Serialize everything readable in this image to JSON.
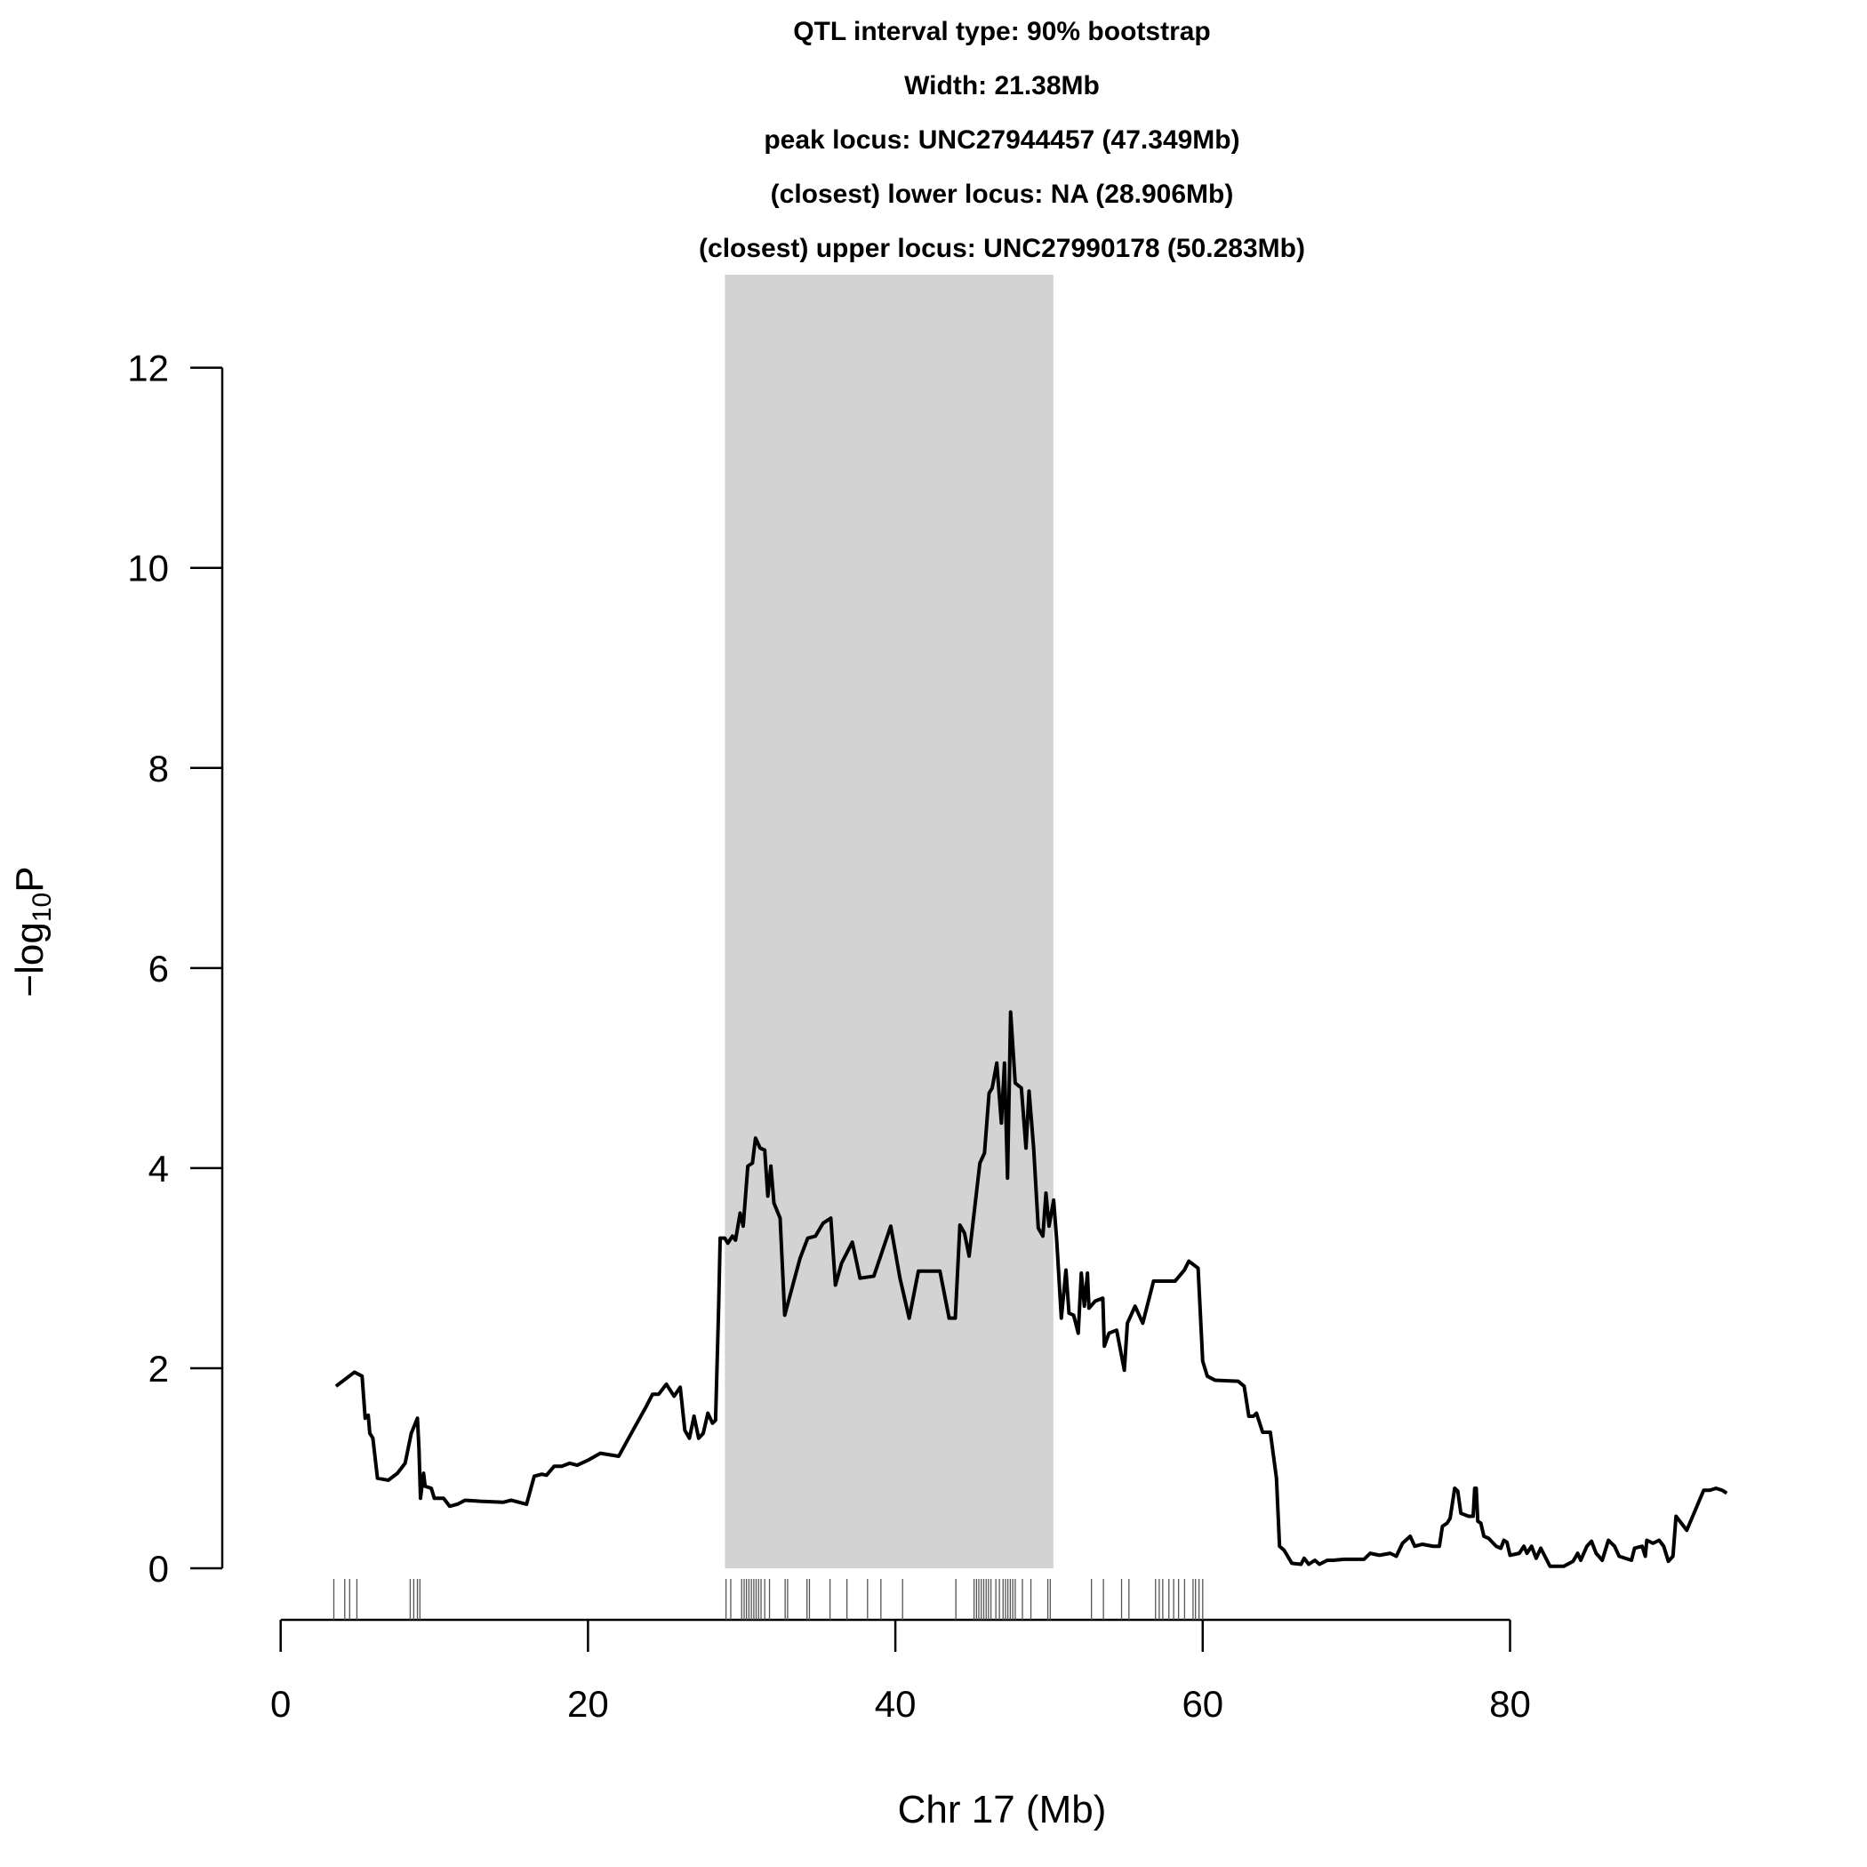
{
  "chart_data": {
    "type": "line",
    "title": [
      "QTL interval type: 90% bootstrap",
      "Width: 21.38Mb",
      "peak locus: UNC27944457 (47.349Mb)",
      "(closest) lower locus: NA (28.906Mb)",
      "(closest) upper locus: UNC27990178 (50.283Mb)"
    ],
    "x_label": "Chr 17 (Mb)",
    "y_label": {
      "main": "−log",
      "sub": "10",
      "suffix": "P"
    },
    "color": "#000000",
    "interval_color": "#d3d3d3",
    "interval": [
      28.906,
      50.283
    ],
    "xlim": [
      -3.8,
      97.5
    ],
    "ylim": [
      0,
      12.93
    ],
    "xticks": [
      0,
      20,
      40,
      60,
      80
    ],
    "yticks": [
      0,
      2,
      4,
      6,
      8,
      10,
      12
    ],
    "x": [
      3.6,
      4.8,
      5.3,
      5.5,
      5.7,
      5.8,
      6.0,
      6.3,
      7.0,
      7.6,
      8.1,
      8.5,
      8.9,
      9.0,
      9.1,
      9.3,
      9.4,
      9.8,
      10.0,
      10.6,
      11.0,
      11.5,
      12.0,
      13.0,
      14.5,
      15.0,
      16.0,
      16.5,
      17.0,
      17.3,
      17.8,
      18.3,
      18.8,
      19.3,
      20.0,
      20.8,
      22.0,
      23.0,
      23.8,
      24.2,
      24.6,
      25.1,
      25.6,
      26.0,
      26.3,
      26.6,
      26.9,
      27.2,
      27.5,
      27.8,
      28.1,
      28.3,
      28.5,
      28.6,
      28.9,
      29.1,
      29.4,
      29.6,
      29.9,
      30.1,
      30.4,
      30.7,
      30.9,
      31.2,
      31.5,
      31.7,
      31.9,
      32.1,
      32.5,
      32.8,
      33.8,
      34.3,
      34.8,
      35.3,
      35.6,
      35.8,
      36.1,
      36.5,
      37.2,
      37.7,
      38.6,
      39.7,
      40.3,
      40.9,
      41.5,
      42.9,
      43.5,
      43.9,
      44.2,
      44.5,
      44.8,
      45.5,
      45.8,
      46.1,
      46.3,
      46.6,
      46.9,
      47.1,
      47.3,
      47.5,
      47.8,
      48.2,
      48.5,
      48.7,
      49.0,
      49.3,
      49.6,
      49.8,
      50.0,
      50.3,
      50.5,
      50.8,
      51.1,
      51.3,
      51.6,
      51.9,
      52.1,
      52.3,
      52.5,
      52.6,
      53.0,
      53.5,
      53.6,
      53.9,
      54.4,
      54.9,
      55.1,
      55.6,
      56.1,
      56.8,
      58.2,
      58.8,
      59.1,
      59.7,
      60.0,
      60.3,
      60.8,
      62.3,
      62.7,
      63.0,
      63.3,
      63.5,
      63.9,
      64.4,
      64.8,
      65.0,
      65.3,
      65.8,
      66.4,
      66.6,
      66.9,
      67.3,
      67.6,
      68.1,
      68.5,
      69.2,
      70.5,
      70.9,
      71.5,
      72.2,
      72.6,
      73.0,
      73.5,
      73.8,
      74.3,
      75.0,
      75.4,
      75.6,
      75.9,
      76.1,
      76.4,
      76.6,
      76.8,
      77.3,
      77.6,
      77.7,
      77.8,
      77.9,
      78.1,
      78.3,
      78.6,
      79.1,
      79.4,
      79.6,
      79.8,
      80.0,
      80.6,
      80.9,
      81.1,
      81.4,
      81.7,
      82.0,
      82.6,
      83.5,
      84.1,
      84.4,
      84.6,
      85.0,
      85.3,
      85.6,
      86.0,
      86.4,
      86.8,
      87.1,
      87.9,
      88.1,
      88.6,
      88.8,
      88.9,
      89.3,
      89.7,
      90.0,
      90.3,
      90.6,
      90.8,
      91.5,
      92.6,
      93.0,
      93.4,
      93.8,
      94.1
    ],
    "values": [
      1.82,
      1.96,
      1.92,
      1.5,
      1.53,
      1.35,
      1.3,
      0.9,
      0.88,
      0.95,
      1.05,
      1.35,
      1.5,
      1.2,
      0.7,
      0.95,
      0.82,
      0.8,
      0.7,
      0.7,
      0.62,
      0.64,
      0.68,
      0.67,
      0.66,
      0.68,
      0.64,
      0.92,
      0.94,
      0.93,
      1.02,
      1.02,
      1.05,
      1.03,
      1.08,
      1.15,
      1.12,
      1.4,
      1.62,
      1.74,
      1.74,
      1.84,
      1.72,
      1.81,
      1.38,
      1.3,
      1.52,
      1.3,
      1.35,
      1.55,
      1.45,
      1.48,
      2.6,
      3.3,
      3.3,
      3.25,
      3.32,
      3.28,
      3.55,
      3.42,
      4.02,
      4.05,
      4.3,
      4.2,
      4.18,
      3.72,
      4.02,
      3.65,
      3.5,
      2.53,
      3.1,
      3.3,
      3.32,
      3.45,
      3.48,
      3.5,
      2.83,
      3.05,
      3.26,
      2.9,
      2.92,
      3.42,
      2.9,
      2.5,
      2.97,
      2.97,
      2.5,
      2.5,
      3.43,
      3.35,
      3.12,
      4.05,
      4.15,
      4.75,
      4.8,
      5.05,
      4.45,
      5.05,
      3.9,
      5.56,
      4.85,
      4.8,
      4.2,
      4.77,
      4.2,
      3.4,
      3.32,
      3.75,
      3.42,
      3.68,
      3.28,
      2.5,
      2.98,
      2.55,
      2.53,
      2.35,
      2.95,
      2.62,
      2.95,
      2.6,
      2.67,
      2.7,
      2.22,
      2.35,
      2.38,
      1.98,
      2.45,
      2.62,
      2.45,
      2.87,
      2.87,
      2.98,
      3.07,
      3.0,
      2.07,
      1.92,
      1.88,
      1.87,
      1.82,
      1.52,
      1.52,
      1.55,
      1.36,
      1.36,
      0.9,
      0.22,
      0.18,
      0.05,
      0.04,
      0.1,
      0.04,
      0.08,
      0.04,
      0.08,
      0.08,
      0.09,
      0.09,
      0.15,
      0.13,
      0.15,
      0.12,
      0.25,
      0.32,
      0.22,
      0.24,
      0.22,
      0.22,
      0.42,
      0.45,
      0.5,
      0.8,
      0.77,
      0.55,
      0.52,
      0.52,
      0.8,
      0.8,
      0.47,
      0.45,
      0.32,
      0.3,
      0.22,
      0.2,
      0.28,
      0.26,
      0.13,
      0.15,
      0.22,
      0.15,
      0.22,
      0.1,
      0.2,
      0.02,
      0.02,
      0.07,
      0.15,
      0.08,
      0.22,
      0.27,
      0.15,
      0.08,
      0.28,
      0.22,
      0.12,
      0.08,
      0.2,
      0.22,
      0.12,
      0.28,
      0.25,
      0.28,
      0.22,
      0.07,
      0.12,
      0.52,
      0.38,
      0.78,
      0.78,
      0.8,
      0.78,
      0.75
    ],
    "markers": [
      3.46,
      4.17,
      4.49,
      4.96,
      8.43,
      8.66,
      8.9,
      9.06,
      28.98,
      29.29,
      30.0,
      30.16,
      30.31,
      30.47,
      30.63,
      30.79,
      30.94,
      31.1,
      31.26,
      31.5,
      31.81,
      32.83,
      32.99,
      34.25,
      34.41,
      35.75,
      36.85,
      38.19,
      39.06,
      40.47,
      43.94,
      45.12,
      45.28,
      45.43,
      45.59,
      45.75,
      45.91,
      46.06,
      46.22,
      46.54,
      46.77,
      47.01,
      47.17,
      47.32,
      47.48,
      47.64,
      47.8,
      48.27,
      48.82,
      49.92,
      50.08,
      52.76,
      53.54,
      54.72,
      55.2,
      56.93,
      57.17,
      57.4,
      57.8,
      58.11,
      58.43,
      58.82,
      59.37,
      59.53,
      59.76,
      60.0
    ]
  }
}
